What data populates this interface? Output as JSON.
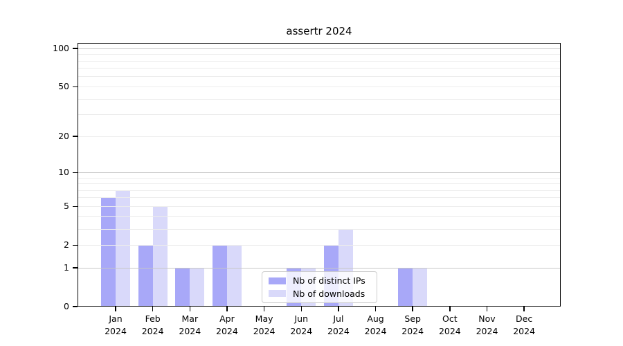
{
  "title": "assertr 2024",
  "chart_data": {
    "type": "bar",
    "title": "assertr 2024",
    "categories": [
      "Jan 2024",
      "Feb 2024",
      "Mar 2024",
      "Apr 2024",
      "May 2024",
      "Jun 2024",
      "Jul 2024",
      "Aug 2024",
      "Sep 2024",
      "Oct 2024",
      "Nov 2024",
      "Dec 2024"
    ],
    "x_tick_months": [
      "Jan",
      "Feb",
      "Mar",
      "Apr",
      "May",
      "Jun",
      "Jul",
      "Aug",
      "Sep",
      "Oct",
      "Nov",
      "Dec"
    ],
    "x_tick_year": "2024",
    "series": [
      {
        "name": "Nb of distinct IPs",
        "color": "#a8a8f8",
        "values": [
          6,
          2,
          1,
          2,
          0,
          1,
          2,
          0,
          1,
          0,
          0,
          0
        ]
      },
      {
        "name": "Nb of downloads",
        "color": "#d9d9fa",
        "values": [
          7,
          5,
          1,
          2,
          0,
          1,
          3,
          0,
          1,
          0,
          0,
          0
        ]
      }
    ],
    "ylabel": "",
    "xlabel": "",
    "y_scale": "log10(value+1)",
    "y_ticks": [
      0,
      1,
      2,
      5,
      10,
      20,
      50,
      100
    ],
    "y_major_grid_values": [
      1,
      10,
      100
    ],
    "y_minor_grid_values": [
      2,
      3,
      4,
      5,
      6,
      7,
      8,
      9,
      20,
      30,
      40,
      50,
      60,
      70,
      80,
      90
    ],
    "ylim_top_value": 111,
    "grid": "on",
    "legend_position": "inside bottom center",
    "colors": {
      "bar_distinct_ips": "#a8a8f8",
      "bar_downloads": "#d9d9fa",
      "grid_major": "#c6c6c6",
      "grid_minor": "#ececec",
      "axis": "#000000",
      "background": "#ffffff",
      "legend_border": "#cccccc"
    }
  }
}
